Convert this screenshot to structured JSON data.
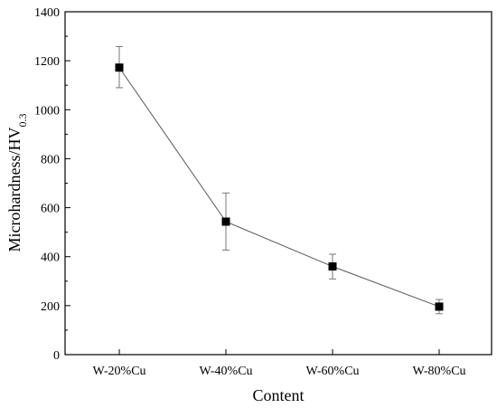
{
  "chart_data": {
    "type": "line",
    "categories": [
      "W-20%Cu",
      "W-40%Cu",
      "W-60%Cu",
      "W-80%Cu"
    ],
    "series": [
      {
        "values": [
          1172,
          543,
          360,
          196
        ],
        "error_upper": [
          1258,
          660,
          410,
          225
        ],
        "error_lower": [
          1090,
          427,
          309,
          167
        ]
      }
    ],
    "xlabel": "Content",
    "ylabel": "Microhardness/HV",
    "ylabel_subscript": "0.3",
    "ylim": [
      0,
      1400
    ],
    "yticks": [
      0,
      200,
      400,
      600,
      800,
      1000,
      1200,
      1400
    ],
    "grid": false,
    "marker": "square",
    "colors": {
      "line": "#555555",
      "marker": "#000000",
      "error": "#777777"
    }
  }
}
